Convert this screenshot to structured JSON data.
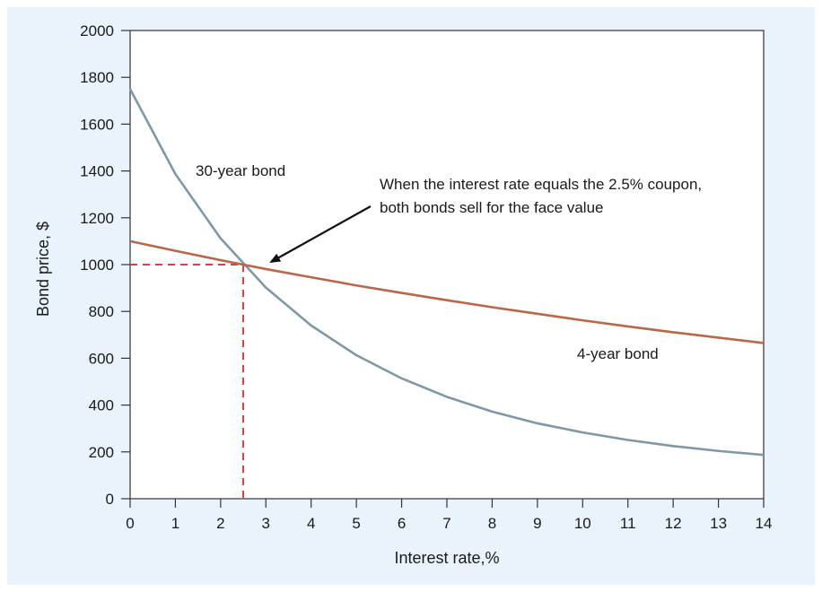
{
  "chart_data": {
    "type": "line",
    "title": "",
    "xlabel": "Interest rate,%",
    "ylabel": "Bond price, $",
    "xlim": [
      0,
      14
    ],
    "ylim": [
      0,
      2000
    ],
    "xticks": [
      0,
      1,
      2,
      3,
      4,
      5,
      6,
      7,
      8,
      9,
      10,
      11,
      12,
      13,
      14
    ],
    "yticks": [
      0,
      200,
      400,
      600,
      800,
      1000,
      1200,
      1400,
      1600,
      1800,
      2000
    ],
    "grid": false,
    "series": [
      {
        "name": "30-year bond",
        "color": "#7f98a6",
        "x": [
          0,
          1,
          2,
          3,
          4,
          5,
          6,
          7,
          8,
          9,
          10,
          11,
          12,
          13,
          14
        ],
        "y": [
          1750,
          1387,
          1112,
          902,
          740,
          613,
          514,
          435,
          372,
          322,
          283,
          251,
          225,
          204,
          187
        ]
      },
      {
        "name": "4-year bond",
        "color": "#b8674a",
        "x": [
          0,
          1,
          2,
          3,
          4,
          5,
          6,
          7,
          8,
          9,
          10,
          11,
          12,
          13,
          14
        ],
        "y": [
          1100,
          1059,
          1019,
          981,
          946,
          911,
          879,
          848,
          818,
          790,
          762,
          736,
          711,
          688,
          665
        ]
      }
    ],
    "reference_point": {
      "x": 2.5,
      "y": 1000,
      "color": "#e03a3a"
    },
    "annotations": {
      "label_30yr": "30-year bond",
      "label_4yr": "4-year bond",
      "callout_line1": "When the interest rate equals the 2.5% coupon,",
      "callout_line2": "both bonds sell for the face value"
    }
  }
}
